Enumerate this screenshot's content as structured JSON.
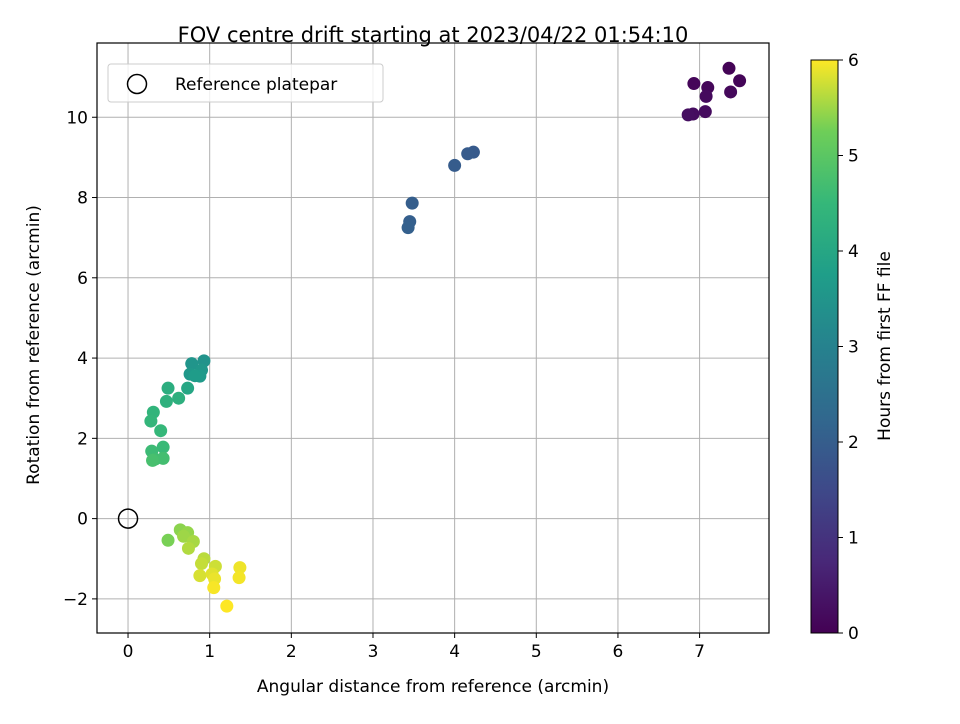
{
  "chart_data": {
    "type": "scatter",
    "title": "FOV centre drift starting at 2023/04/22 01:54:10",
    "xlabel": "Angular distance from reference (arcmin)",
    "ylabel": "Rotation from reference (arcmin)",
    "xlim": [
      -0.38,
      7.85
    ],
    "ylim": [
      -2.85,
      11.85
    ],
    "xticks": [
      0,
      1,
      2,
      3,
      4,
      5,
      6,
      7
    ],
    "xtick_labels": [
      "0",
      "1",
      "2",
      "3",
      "4",
      "5",
      "6",
      "7"
    ],
    "yticks": [
      -2,
      0,
      2,
      4,
      6,
      8,
      10
    ],
    "ytick_labels": [
      "−2",
      "0",
      "2",
      "4",
      "6",
      "8",
      "10"
    ],
    "grid": true,
    "legend": {
      "location": "top-left",
      "entries": [
        {
          "label": "Reference platepar",
          "marker": "open-circle"
        }
      ]
    },
    "colorbar": {
      "label": "Hours from first FF file",
      "colormap": "viridis",
      "range": [
        0,
        6
      ],
      "ticks": [
        0,
        1,
        2,
        3,
        4,
        5,
        6
      ],
      "tick_labels": [
        "0",
        "1",
        "2",
        "3",
        "4",
        "5",
        "6"
      ]
    },
    "reference_point": {
      "x": 0,
      "y": 0
    },
    "points": [
      {
        "x": 7.36,
        "y": 11.22,
        "hours": 0.05
      },
      {
        "x": 7.49,
        "y": 10.91,
        "hours": 0.08
      },
      {
        "x": 6.93,
        "y": 10.84,
        "hours": 0.1
      },
      {
        "x": 7.1,
        "y": 10.74,
        "hours": 0.12
      },
      {
        "x": 7.38,
        "y": 10.63,
        "hours": 0.15
      },
      {
        "x": 7.08,
        "y": 10.52,
        "hours": 0.18
      },
      {
        "x": 7.07,
        "y": 10.14,
        "hours": 0.2
      },
      {
        "x": 6.92,
        "y": 10.08,
        "hours": 0.22
      },
      {
        "x": 6.86,
        "y": 10.06,
        "hours": 0.25
      },
      {
        "x": 4.23,
        "y": 9.13,
        "hours": 1.9
      },
      {
        "x": 4.16,
        "y": 9.09,
        "hours": 1.93
      },
      {
        "x": 4.0,
        "y": 8.8,
        "hours": 1.96
      },
      {
        "x": 3.48,
        "y": 7.86,
        "hours": 2.0
      },
      {
        "x": 3.45,
        "y": 7.4,
        "hours": 2.03
      },
      {
        "x": 3.43,
        "y": 7.25,
        "hours": 2.06
      },
      {
        "x": 0.93,
        "y": 3.93,
        "hours": 3.45
      },
      {
        "x": 0.78,
        "y": 3.86,
        "hours": 3.5
      },
      {
        "x": 0.9,
        "y": 3.7,
        "hours": 3.55
      },
      {
        "x": 0.76,
        "y": 3.6,
        "hours": 3.6
      },
      {
        "x": 0.88,
        "y": 3.55,
        "hours": 3.65
      },
      {
        "x": 0.82,
        "y": 3.56,
        "hours": 3.7
      },
      {
        "x": 0.73,
        "y": 3.25,
        "hours": 4.0
      },
      {
        "x": 0.49,
        "y": 3.25,
        "hours": 4.2
      },
      {
        "x": 0.62,
        "y": 3.0,
        "hours": 4.25
      },
      {
        "x": 0.47,
        "y": 2.92,
        "hours": 4.3
      },
      {
        "x": 0.31,
        "y": 2.65,
        "hours": 4.4
      },
      {
        "x": 0.28,
        "y": 2.43,
        "hours": 4.45
      },
      {
        "x": 0.4,
        "y": 2.19,
        "hours": 4.5
      },
      {
        "x": 0.43,
        "y": 1.78,
        "hours": 4.55
      },
      {
        "x": 0.29,
        "y": 1.68,
        "hours": 4.6
      },
      {
        "x": 0.33,
        "y": 1.48,
        "hours": 4.65
      },
      {
        "x": 0.43,
        "y": 1.5,
        "hours": 4.7
      },
      {
        "x": 0.3,
        "y": 1.45,
        "hours": 4.75
      },
      {
        "x": 0.49,
        "y": -0.54,
        "hours": 5.3
      },
      {
        "x": 0.64,
        "y": -0.28,
        "hours": 5.4
      },
      {
        "x": 0.73,
        "y": -0.35,
        "hours": 5.45
      },
      {
        "x": 0.68,
        "y": -0.44,
        "hours": 5.5
      },
      {
        "x": 0.8,
        "y": -0.57,
        "hours": 5.55
      },
      {
        "x": 0.74,
        "y": -0.74,
        "hours": 5.6
      },
      {
        "x": 0.93,
        "y": -1.0,
        "hours": 5.65
      },
      {
        "x": 0.9,
        "y": -1.12,
        "hours": 5.7
      },
      {
        "x": 1.07,
        "y": -1.19,
        "hours": 5.75
      },
      {
        "x": 0.88,
        "y": -1.42,
        "hours": 5.8
      },
      {
        "x": 1.03,
        "y": -1.38,
        "hours": 5.85
      },
      {
        "x": 1.06,
        "y": -1.5,
        "hours": 5.9
      },
      {
        "x": 1.37,
        "y": -1.22,
        "hours": 5.92
      },
      {
        "x": 1.36,
        "y": -1.47,
        "hours": 5.95
      },
      {
        "x": 1.05,
        "y": -1.72,
        "hours": 5.97
      },
      {
        "x": 1.21,
        "y": -2.18,
        "hours": 6.0
      }
    ]
  }
}
